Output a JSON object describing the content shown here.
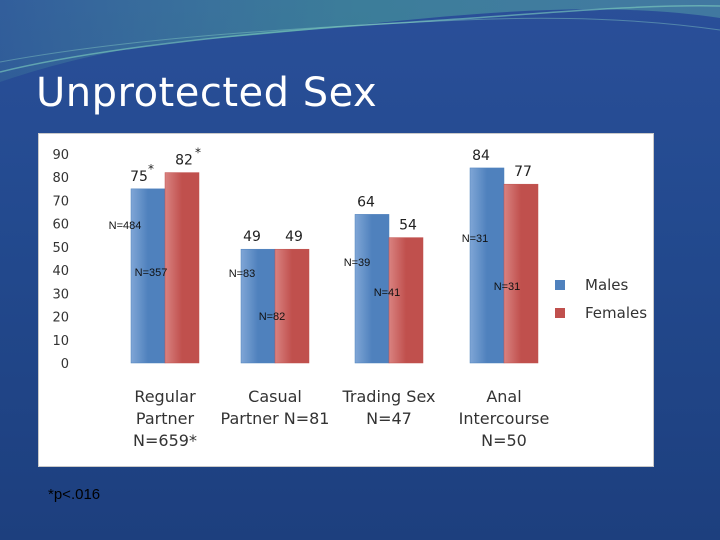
{
  "slide": {
    "title": "Unprotected Sex",
    "footnote": "*p<.016"
  },
  "colors": {
    "males": "#4f81bd",
    "females": "#c0504d",
    "background": "#234a8f"
  },
  "chart_data": {
    "type": "bar",
    "categories": [
      [
        "Regular",
        "Partner",
        "N=659*"
      ],
      [
        "Casual",
        "Partner N=81"
      ],
      [
        "Trading Sex",
        "N=47"
      ],
      [
        "Anal",
        "Intercourse",
        "N=50"
      ]
    ],
    "series": [
      {
        "name": "Males",
        "values": [
          75,
          49,
          64,
          84
        ],
        "labels": [
          "75",
          "49",
          "64",
          "84"
        ]
      },
      {
        "name": "Females",
        "values": [
          82,
          49,
          54,
          77
        ],
        "labels": [
          "82",
          "49",
          "54",
          "77"
        ]
      }
    ],
    "annotations": [
      {
        "text": "*",
        "category": 0,
        "series": 0
      },
      {
        "text": "*",
        "category": 0,
        "series": 1
      }
    ],
    "n_labels": [
      {
        "text": "N=484",
        "category": 0,
        "series": 0
      },
      {
        "text": "N=357",
        "category": 0,
        "series": 1
      },
      {
        "text": "N=83",
        "category": 1,
        "series": 0
      },
      {
        "text": "N=82",
        "category": 1,
        "series": 1
      },
      {
        "text": "N=39",
        "category": 2,
        "series": 0
      },
      {
        "text": "N=41",
        "category": 2,
        "series": 1
      },
      {
        "text": "N=31",
        "category": 3,
        "series": 0
      },
      {
        "text": "N=31",
        "category": 3,
        "series": 1
      }
    ],
    "ylim": [
      0,
      90
    ],
    "yticks": [
      0,
      10,
      20,
      30,
      40,
      50,
      60,
      70,
      80,
      90
    ],
    "grid": false,
    "legend": "right"
  }
}
